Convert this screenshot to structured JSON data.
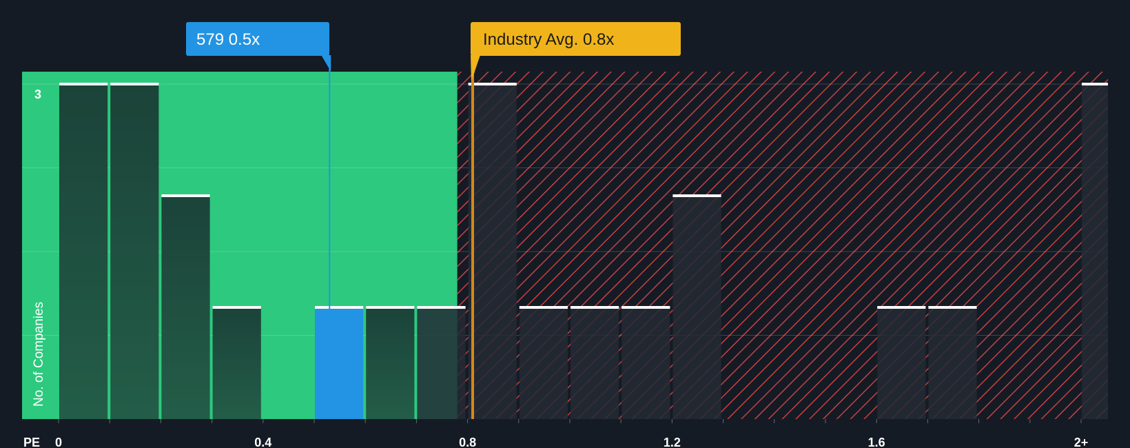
{
  "chart_data": {
    "type": "bar",
    "x_axis_label": "PE",
    "y_axis_label": "No. of Companies",
    "x_ticks": [
      "0",
      "0.4",
      "0.8",
      "1.2",
      "1.6",
      "2+"
    ],
    "x_tick_values": [
      0,
      0.4,
      0.8,
      1.2,
      1.6,
      2.0
    ],
    "y_ticks": [
      "3"
    ],
    "y_tick_values": [
      3
    ],
    "xlim": [
      -0.07,
      2.05
    ],
    "ylim": [
      0,
      3.15
    ],
    "bin_width": 0.1,
    "bins": [
      {
        "start": 0.0,
        "count": 3
      },
      {
        "start": 0.1,
        "count": 3
      },
      {
        "start": 0.2,
        "count": 2
      },
      {
        "start": 0.3,
        "count": 1
      },
      {
        "start": 0.5,
        "count": 1,
        "highlight": true
      },
      {
        "start": 0.6,
        "count": 1
      },
      {
        "start": 0.7,
        "count": 1
      },
      {
        "start": 0.8,
        "count": 3
      },
      {
        "start": 0.9,
        "count": 1
      },
      {
        "start": 1.0,
        "count": 1
      },
      {
        "start": 1.1,
        "count": 1
      },
      {
        "start": 1.2,
        "count": 2
      },
      {
        "start": 1.6,
        "count": 1
      },
      {
        "start": 1.7,
        "count": 1
      },
      {
        "start": 2.0,
        "count": 3
      }
    ],
    "company": {
      "label": "579 0.5x",
      "value": 0.53
    },
    "industry_avg": {
      "label": "Industry Avg. 0.8x",
      "value": 0.81
    },
    "undervalued_until": 0.78,
    "colors": {
      "background": "#151b24",
      "green_zone": "#2dc97e",
      "red_zone": "#c94040",
      "bar_in_green": "#1e4a3e",
      "bar_in_red": "#232a35",
      "highlight_bar": "#2394e3",
      "bar_cap": "#ffffff",
      "company_callout": "#2394e3",
      "industry_callout": "#f0b41a",
      "industry_line": "#d4881a"
    }
  }
}
